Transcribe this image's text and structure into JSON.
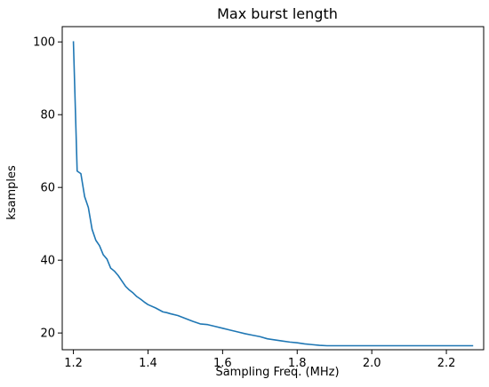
{
  "chart_data": {
    "type": "line",
    "title": "Max burst length",
    "xlabel": "Sampling Freq. (MHz)",
    "ylabel": "ksamples",
    "xlim": [
      1.17,
      2.3
    ],
    "ylim": [
      15.4,
      104.2
    ],
    "xticks": [
      1.2,
      1.4,
      1.6,
      1.8,
      2.0,
      2.2
    ],
    "xtick_labels": [
      "1.2",
      "1.4",
      "1.6",
      "1.8",
      "2.0",
      "2.2"
    ],
    "yticks": [
      20,
      40,
      60,
      80,
      100
    ],
    "ytick_labels": [
      "20",
      "40",
      "60",
      "80",
      "100"
    ],
    "grid": false,
    "legend": "none",
    "series": [
      {
        "color": "#1f77b4",
        "x": [
          1.2,
          1.21,
          1.22,
          1.23,
          1.24,
          1.25,
          1.26,
          1.27,
          1.28,
          1.29,
          1.3,
          1.31,
          1.32,
          1.33,
          1.34,
          1.35,
          1.36,
          1.37,
          1.38,
          1.39,
          1.4,
          1.42,
          1.44,
          1.45,
          1.46,
          1.48,
          1.5,
          1.52,
          1.54,
          1.56,
          1.58,
          1.6,
          1.62,
          1.64,
          1.66,
          1.68,
          1.7,
          1.72,
          1.74,
          1.76,
          1.78,
          1.8,
          1.82,
          1.84,
          1.86,
          1.88,
          1.9,
          1.95,
          2.0,
          2.05,
          2.1,
          2.15,
          2.2,
          2.27
        ],
        "y": [
          100.0,
          64.5,
          63.8,
          57.5,
          54.5,
          48.5,
          45.5,
          44.0,
          41.5,
          40.3,
          37.8,
          37.0,
          35.8,
          34.3,
          32.8,
          31.8,
          31.0,
          30.0,
          29.3,
          28.5,
          27.8,
          26.9,
          25.8,
          25.6,
          25.3,
          24.8,
          24.0,
          23.2,
          22.5,
          22.3,
          21.8,
          21.3,
          20.8,
          20.3,
          19.8,
          19.4,
          19.0,
          18.4,
          18.1,
          17.8,
          17.5,
          17.3,
          17.0,
          16.8,
          16.6,
          16.5,
          16.5,
          16.5,
          16.5,
          16.5,
          16.5,
          16.5,
          16.5,
          16.5
        ]
      }
    ]
  }
}
